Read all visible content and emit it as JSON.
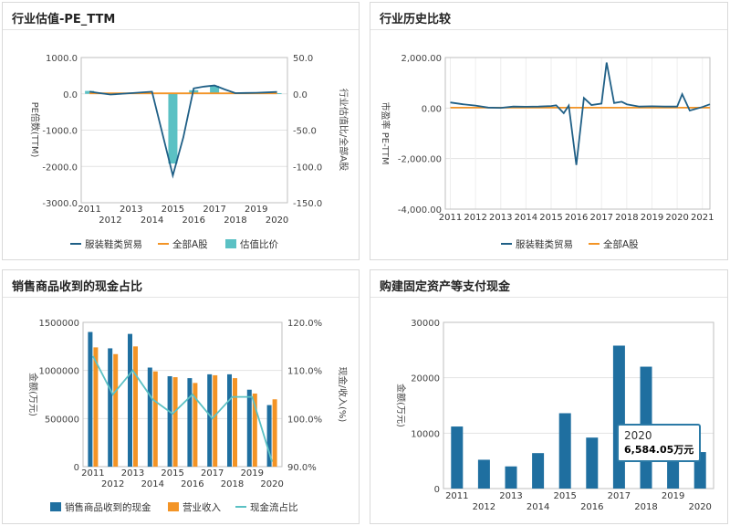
{
  "colors": {
    "navy": "#1f5f86",
    "orange": "#f39426",
    "teal": "#5bc1c4",
    "bluebar": "#1f6fa0",
    "grid": "#e3e3e3"
  },
  "panels": {
    "p1": {
      "title": "行业估值-PE_TTM"
    },
    "p2": {
      "title": "行业历史比较"
    },
    "p3": {
      "title": "销售商品收到的现金占比"
    },
    "p4": {
      "title": "购建固定资产等支付现金"
    }
  },
  "chart_data": [
    {
      "id": "p1",
      "type": "bar",
      "xlabels": [
        "2011",
        "2012",
        "2013",
        "2014",
        "2015",
        "2016",
        "2017",
        "2018",
        "2019",
        "2020"
      ],
      "ylabel_left": "PE倍数(TTM)",
      "ylabel_right": "行业估值比/全部A股",
      "left_ticks": [
        "1000.0",
        "0.0",
        "-1000.0",
        "-2000.0",
        "-3000.0"
      ],
      "left_ylim": [
        -3000,
        1000
      ],
      "right_ticks": [
        "50.0",
        "0.0",
        "-50.0",
        "-100.0",
        "-150.0"
      ],
      "right_ylim": [
        -150,
        50
      ],
      "legend": [
        "服装鞋类贸易",
        "全部A股",
        "估值比价"
      ],
      "line_x": [
        2011,
        2011.5,
        2012,
        2013,
        2014,
        2015,
        2015.5,
        2016,
        2016.5,
        2017,
        2017.5,
        2018,
        2018.5,
        2019,
        2019.5,
        2020
      ],
      "line_values": [
        60,
        20,
        -20,
        20,
        60,
        -2250,
        -1200,
        150,
        200,
        230,
        120,
        20,
        25,
        30,
        40,
        55
      ],
      "base_values": [
        15,
        15,
        15,
        15,
        15,
        15,
        15,
        15,
        15,
        15,
        15,
        15,
        15,
        15,
        15,
        15
      ],
      "bars": [
        {
          "x": 2011,
          "value": 4
        },
        {
          "x": 2012,
          "value": 1
        },
        {
          "x": 2013,
          "value": 1
        },
        {
          "x": 2014,
          "value": 1
        },
        {
          "x": 2015,
          "value": -96
        },
        {
          "x": 2016,
          "value": 5
        },
        {
          "x": 2017,
          "value": 11
        },
        {
          "x": 2018,
          "value": 1
        },
        {
          "x": 2019,
          "value": 1
        },
        {
          "x": 2020,
          "value": 1
        }
      ]
    },
    {
      "id": "p2",
      "type": "line",
      "xlabels": [
        "2011",
        "2012",
        "2013",
        "2014",
        "2015",
        "2016",
        "2017",
        "2018",
        "2019",
        "2020",
        "2021"
      ],
      "ylabel": "市盈率 PE-TTM",
      "ticks": [
        "2,000.00",
        "0.00",
        "-2,000.00",
        "-4,000.00"
      ],
      "ylim": [
        -4000,
        2000
      ],
      "legend": [
        "服装鞋类贸易",
        "全部A股"
      ],
      "line_x": [
        2011,
        2011.5,
        2012,
        2012.5,
        2013,
        2013.5,
        2014,
        2014.5,
        2015,
        2015.2,
        2015.5,
        2015.7,
        2016,
        2016.3,
        2016.6,
        2017,
        2017.2,
        2017.5,
        2017.8,
        2018,
        2018.5,
        2019,
        2019.5,
        2020,
        2020.2,
        2020.5,
        2021,
        2021.3
      ],
      "line_values": [
        220,
        150,
        100,
        20,
        10,
        60,
        50,
        60,
        80,
        110,
        -200,
        100,
        -2250,
        400,
        120,
        180,
        1800,
        200,
        250,
        150,
        60,
        70,
        60,
        60,
        550,
        -100,
        40,
        150
      ],
      "base_values": [
        15,
        15,
        15,
        15,
        15,
        15,
        15,
        15,
        15,
        15,
        15,
        15,
        15,
        15,
        15,
        15,
        15,
        15,
        15,
        15,
        15,
        15,
        15,
        15,
        15,
        15,
        15,
        15
      ]
    },
    {
      "id": "p3",
      "type": "bar",
      "xlabels": [
        "2011",
        "2012",
        "2013",
        "2014",
        "2015",
        "2016",
        "2017",
        "2018",
        "2019",
        "2020"
      ],
      "ylabel_left": "金额(万元)",
      "ylabel_right": "现金/收入(%)",
      "left_ticks": [
        "1500000",
        "1000000",
        "500000",
        "0"
      ],
      "left_ylim": [
        0,
        1500000
      ],
      "right_ticks": [
        "120.0%",
        "110.0%",
        "100.0%",
        "90.0%"
      ],
      "right_ylim": [
        90,
        120
      ],
      "legend": [
        "销售商品收到的现金",
        "营业收入",
        "现金流占比"
      ],
      "cash": [
        1400000,
        1230000,
        1380000,
        1030000,
        940000,
        920000,
        960000,
        960000,
        800000,
        640000
      ],
      "revenue": [
        1240000,
        1170000,
        1250000,
        990000,
        930000,
        870000,
        950000,
        920000,
        760000,
        700000
      ],
      "ratio": [
        113,
        105,
        110,
        104,
        101,
        105,
        100,
        104.5,
        104.5,
        91
      ]
    },
    {
      "id": "p4",
      "type": "bar",
      "xlabels": [
        "2011",
        "2012",
        "2013",
        "2014",
        "2015",
        "2016",
        "2017",
        "2018",
        "2019",
        "2020"
      ],
      "ylabel": "金额(万元)",
      "ticks": [
        "30000",
        "20000",
        "10000",
        "0"
      ],
      "ylim": [
        0,
        30000
      ],
      "values": [
        11200,
        5200,
        4000,
        6400,
        13600,
        9200,
        25800,
        22000,
        6584.05,
        6584.05
      ],
      "tooltip": {
        "year": "2020",
        "value": "6,584.05万元"
      }
    }
  ]
}
